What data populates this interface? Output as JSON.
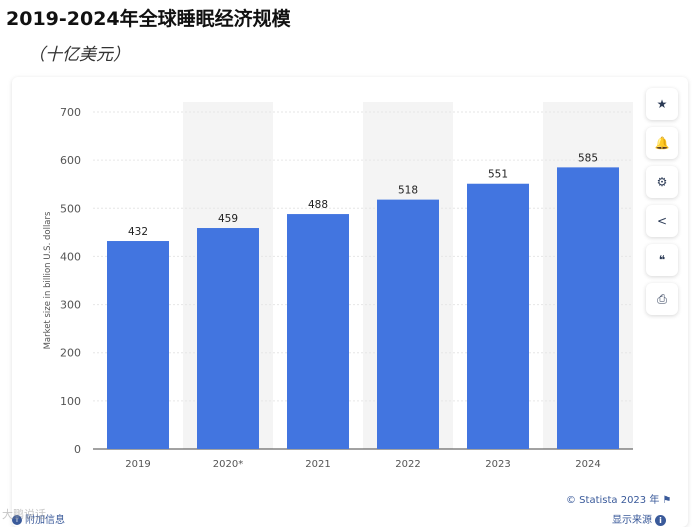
{
  "page": {
    "title": "2019-2024年全球睡眠经济规模",
    "subtitle": "（十亿美元）"
  },
  "colors": {
    "bar": "#4275e0",
    "band": "#f4f4f4",
    "grid": "#e6e6e6",
    "axis_text": "#555555"
  },
  "toolbar": {
    "buttons": [
      {
        "name": "favorite",
        "icon": "star-icon",
        "glyph": "★"
      },
      {
        "name": "notification",
        "icon": "bell-icon",
        "glyph": "🔔"
      },
      {
        "name": "settings",
        "icon": "gear-icon",
        "glyph": "⚙"
      },
      {
        "name": "share",
        "icon": "share-icon",
        "glyph": "<"
      },
      {
        "name": "cite",
        "icon": "quote-icon",
        "glyph": "❝"
      },
      {
        "name": "print",
        "icon": "print-icon",
        "glyph": "⎙"
      }
    ]
  },
  "footer": {
    "source_text": "© Statista 2023 年",
    "flag_icon": "flag-icon",
    "sources_link": "显示来源",
    "info_icon": "info-icon",
    "extra_info": "附加信息"
  },
  "watermark": {
    "text": "大鹏说话"
  },
  "chart_data": {
    "type": "bar",
    "categories": [
      "2019",
      "2020*",
      "2021",
      "2022",
      "2023",
      "2024"
    ],
    "values": [
      432,
      459,
      488,
      518,
      551,
      585
    ],
    "data_labels": [
      "432",
      "459",
      "488",
      "518",
      "551",
      "585"
    ],
    "ylabel": "Market size in billion U.S. dollars",
    "xlabel": "",
    "ylim": [
      0,
      700
    ],
    "yticks": [
      0,
      100,
      200,
      300,
      400,
      500,
      600,
      700
    ],
    "grid": true,
    "legend": false,
    "alternating_bands": [
      1,
      3,
      5
    ]
  }
}
